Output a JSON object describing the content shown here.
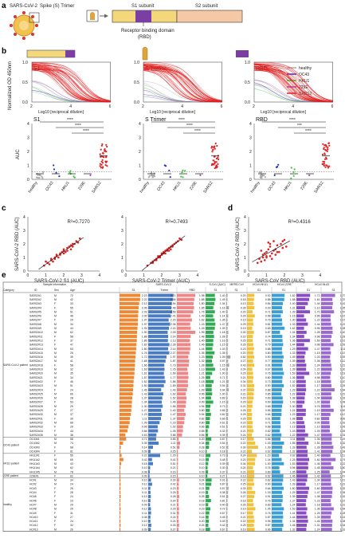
{
  "panel_letters": [
    "a",
    "b",
    "c",
    "d",
    "e"
  ],
  "panel_a": {
    "virus_label": "SARS-CoV-2",
    "spike_label": "Spike (S) Trimer",
    "s1_label": "S1 subunit",
    "s2_label": "S2 subunit",
    "rbd_label": "Receptor binding domain",
    "rbd_abbr": "(RBD)",
    "colors": {
      "s1": "#f3d77a",
      "s2": "#f6c9a6",
      "rbd": "#7b3fa3",
      "virus": "#f2c14e",
      "spike": "#d9352a"
    }
  },
  "legend": [
    {
      "name": "healthy",
      "color": "#aaaaaa"
    },
    {
      "name": "OC43",
      "color": "#2233cc"
    },
    {
      "name": "HKU1",
      "color": "#33cc33"
    },
    {
      "name": "229E",
      "color": "#aa44cc"
    },
    {
      "name": "SARS2",
      "color": "#e02020"
    }
  ],
  "panel_b": {
    "ylabel_top": "Normalized OD 450nm",
    "xlabel_top": "Log10 [reciprocal dilution]",
    "ylabel_bottom": "AUC",
    "sig": "****",
    "sig2": "***",
    "cats": [
      "healthy",
      "OC43",
      "HKU1",
      "229E",
      "SARS2"
    ],
    "curves": [
      {
        "title": "S1",
        "x": [
          2,
          3,
          4,
          5,
          6
        ],
        "xticks": [
          "2",
          "4",
          "6"
        ],
        "yticks": [
          "0.0",
          "0.5",
          "1.0"
        ]
      },
      {
        "title": "S Trimer",
        "x": [
          2,
          3,
          4,
          5,
          6
        ],
        "xticks": [
          "2",
          "4",
          "6"
        ],
        "yticks": [
          "0.0",
          "0.5",
          "1.0"
        ]
      },
      {
        "title": "RBD",
        "x": [
          2,
          3,
          4,
          5,
          6
        ],
        "xticks": [
          "2",
          "4",
          "6"
        ],
        "yticks": [
          "0.0",
          "0.5",
          "1.0"
        ]
      }
    ],
    "auc": [
      {
        "title": "S1",
        "yticks": [
          "0",
          "1",
          "2",
          "3",
          "4"
        ],
        "ylim": [
          0,
          4
        ]
      },
      {
        "title": "S Trimer",
        "yticks": [
          "0",
          "1",
          "2",
          "3",
          "4"
        ],
        "ylim": [
          0,
          4
        ]
      },
      {
        "title": "RBD",
        "yticks": [
          "0",
          "1",
          "2",
          "3",
          "4"
        ],
        "ylim": [
          0,
          4
        ]
      }
    ]
  },
  "chart_data": [
    {
      "type": "scatter",
      "title": "",
      "xlabel": "SARS-CoV-2 S1 (AUC)",
      "ylabel": "SARS-CoV-2 RBD (AUC)",
      "annotation": "R²=0.7270",
      "xlim": [
        0,
        4
      ],
      "ylim": [
        0,
        4
      ],
      "x": [
        0.9,
        1.1,
        1.2,
        1.3,
        1.4,
        1.5,
        1.5,
        1.6,
        1.7,
        1.8,
        1.8,
        1.9,
        2.0,
        2.0,
        2.1,
        2.2,
        2.2,
        2.3,
        2.4,
        2.5,
        2.6,
        2.7,
        2.8,
        2.9,
        1.0,
        1.6,
        2.0,
        2.4,
        2.5,
        1.3
      ],
      "y": [
        0.4,
        0.6,
        0.5,
        0.8,
        0.7,
        0.9,
        1.0,
        1.1,
        1.0,
        1.3,
        1.2,
        1.4,
        1.5,
        1.6,
        1.4,
        1.7,
        1.5,
        1.8,
        1.9,
        2.0,
        2.0,
        2.2,
        2.1,
        2.4,
        0.7,
        1.2,
        1.3,
        1.6,
        1.8,
        0.9
      ]
    },
    {
      "type": "scatter",
      "title": "",
      "xlabel": "SARS-CoV-2 Trimer (AUC)",
      "ylabel": "",
      "annotation": "R²=0.7493",
      "xlim": [
        0,
        4
      ],
      "ylim": [
        0,
        4
      ],
      "x": [
        1.2,
        1.4,
        1.5,
        1.6,
        1.7,
        1.8,
        1.8,
        1.9,
        2.0,
        2.0,
        2.1,
        2.2,
        2.2,
        2.3,
        2.3,
        2.4,
        2.5,
        2.5,
        2.6,
        2.7,
        2.8,
        2.9,
        3.0,
        3.1,
        1.5,
        1.9,
        2.1,
        2.4,
        2.6,
        1.7
      ],
      "y": [
        0.4,
        0.6,
        0.7,
        0.8,
        0.8,
        1.0,
        1.1,
        1.1,
        1.3,
        1.2,
        1.4,
        1.5,
        1.3,
        1.6,
        1.5,
        1.7,
        1.8,
        1.6,
        1.9,
        2.0,
        2.1,
        2.2,
        2.4,
        2.3,
        0.6,
        1.0,
        1.3,
        1.5,
        1.8,
        0.9
      ]
    },
    {
      "type": "scatter",
      "title": "",
      "xlabel": "SARS-CoV RBD (AUC)",
      "ylabel": "SARS-CoV-2 RBD (AUC)",
      "annotation": "R²=0.4316",
      "xlim": [
        0,
        4
      ],
      "ylim": [
        0,
        4
      ],
      "x": [
        0.5,
        0.6,
        0.7,
        0.8,
        0.9,
        1.0,
        1.0,
        1.1,
        1.2,
        1.2,
        1.3,
        1.4,
        1.4,
        1.5,
        1.6,
        1.7,
        1.8,
        1.9,
        2.0,
        2.1,
        0.7,
        0.9,
        1.1,
        1.3,
        1.5,
        1.0,
        1.2,
        0.8,
        1.6,
        1.9
      ],
      "y": [
        0.6,
        0.9,
        0.7,
        1.2,
        0.8,
        1.4,
        1.0,
        1.6,
        1.1,
        1.8,
        1.3,
        1.5,
        2.2,
        1.2,
        1.9,
        1.4,
        2.0,
        1.7,
        2.3,
        1.8,
        1.5,
        1.3,
        2.1,
        0.9,
        1.6,
        1.1,
        2.0,
        1.0,
        1.4,
        2.2
      ]
    }
  ],
  "panel_cd_ticks": [
    "0",
    "1",
    "2",
    "3",
    "4"
  ],
  "panel_e": {
    "sample_info": "Sample information",
    "group_header": "Category",
    "col_headers": [
      "ID",
      "Sex",
      "Age"
    ],
    "assay_groups": [
      "SARS-CoV-2",
      "S-CoV (AUC)",
      "MERS-CoV",
      "HCoV-HKU1",
      "HCoV-229E",
      "HCoV-NL63"
    ],
    "assay_sub": [
      "S1",
      "Trimer",
      "RBD",
      "S1",
      "S1",
      "S1",
      "S1",
      "S1",
      "S1"
    ],
    "categories": [
      {
        "label": "SARS-CoV-2 patient",
        "rows": 35
      },
      {
        "label": "OC43 patient",
        "rows": 4
      },
      {
        "label": "HKU1 patient",
        "rows": 5
      },
      {
        "label": "229E patient",
        "rows": 1
      },
      {
        "label": "healthy",
        "rows": 13
      }
    ],
    "col_colors": [
      "#ee8833",
      "#4a7cc4",
      "#ee8888",
      "#33aa55",
      "#aaaaaa",
      "#f2c23a",
      "#3a9fd4",
      "#8a4ec4",
      "#9a6ad0"
    ],
    "rows": [
      [
        "SARS2#1",
        "M",
        "72"
      ],
      [
        "SARS2#2",
        "M",
        "42"
      ],
      [
        "SARS2#3",
        "F",
        "33"
      ],
      [
        "SARS2#4",
        "F",
        "55"
      ],
      [
        "SARS2#5",
        "M",
        "51"
      ],
      [
        "SARS2#6",
        "M",
        "48"
      ],
      [
        "SARS2#7",
        "F",
        "29"
      ],
      [
        "SARS2#8",
        "M",
        "34"
      ],
      [
        "SARS2#9",
        "M",
        "44"
      ],
      [
        "SARS2#10",
        "M",
        "62"
      ],
      [
        "SARS2#11",
        "F",
        "58"
      ],
      [
        "SARS2#12",
        "F",
        "37"
      ],
      [
        "SARS2#13",
        "F",
        "47"
      ],
      [
        "SARS2#14",
        "M",
        "63"
      ],
      [
        "SARS2#15",
        "M",
        "25"
      ],
      [
        "SARS2#16",
        "M",
        "39"
      ],
      [
        "SARS2#17",
        "M",
        "41"
      ],
      [
        "SARS2#18",
        "F",
        "58"
      ],
      [
        "SARS2#19",
        "M",
        "32"
      ],
      [
        "SARS2#20",
        "M",
        "35"
      ],
      [
        "SARS2#21",
        "M",
        "34"
      ],
      [
        "SARS2#22",
        "F",
        "46"
      ],
      [
        "SARS2#23",
        "M",
        "51"
      ],
      [
        "SARS2#24",
        "F",
        "24"
      ],
      [
        "SARS2#25",
        "M",
        "66"
      ],
      [
        "SARS2#26",
        "M",
        "28"
      ],
      [
        "SARS2#27",
        "F",
        "53"
      ],
      [
        "SARS2#28",
        "M",
        "29"
      ],
      [
        "SARS2#29",
        "F",
        "27"
      ],
      [
        "SARS2#30",
        "M",
        "37"
      ],
      [
        "SARS2#31",
        "F",
        "39"
      ],
      [
        "SARS2#32",
        "M",
        "68"
      ],
      [
        "SARS2#33",
        "F",
        "29"
      ],
      [
        "SARS2#34",
        "F",
        "43"
      ],
      [
        "SARS2#35",
        "M",
        "38"
      ],
      [
        "OC43#1",
        "M",
        "58"
      ],
      [
        "OC43#2",
        "M",
        "74"
      ],
      [
        "OC43#3",
        "F",
        "68"
      ],
      [
        "OC43#4",
        "F",
        "61"
      ],
      [
        "HKU1#1",
        "F",
        "56"
      ],
      [
        "HKU1#2",
        "M",
        "65"
      ],
      [
        "HKU1#3",
        "M",
        "43"
      ],
      [
        "HKU1#4",
        "M",
        "62"
      ],
      [
        "HKU1#5",
        "M",
        "78"
      ],
      [
        "229E#1",
        "F",
        "62"
      ],
      [
        "HC#1",
        "M",
        "34"
      ],
      [
        "HC#2",
        "M",
        "24"
      ],
      [
        "HC#3",
        "F",
        "26"
      ],
      [
        "HC#4",
        "F",
        "28"
      ],
      [
        "HC#5",
        "F",
        "24"
      ],
      [
        "HC#6",
        "F",
        "23"
      ],
      [
        "HC#7",
        "M",
        "29"
      ],
      [
        "HC#8",
        "M",
        "25"
      ],
      [
        "HC#9",
        "F",
        "31"
      ],
      [
        "HC#10",
        "M",
        "27"
      ],
      [
        "HC#11",
        "F",
        "24"
      ],
      [
        "HC#12",
        "F",
        "32"
      ],
      [
        "HC#13",
        "M",
        "26"
      ]
    ],
    "values": [
      [
        2.23,
        2.71,
        1.98,
        1.4,
        0.2,
        0.92,
        1.62,
        1.72,
        1.7
      ],
      [
        2.22,
        2.65,
        1.88,
        1.49,
        0.18,
        0.88,
        1.58,
        1.61,
        1.37
      ],
      [
        2.12,
        2.54,
        1.8,
        1.34,
        0.13,
        0.84,
        1.4,
        1.44,
        1.42
      ],
      [
        2.06,
        2.48,
        1.85,
        1.16,
        0.39,
        0.93,
        1.31,
        1.1,
        1.35
      ],
      [
        2.03,
        2.58,
        1.76,
        1.4,
        0.2,
        0.71,
        1.39,
        1.7,
        1.57
      ],
      [
        2.0,
        2.41,
        1.49,
        1.14,
        0.29,
        0.98,
        1.15,
        0.96,
        1.15
      ],
      [
        1.97,
        2.2,
        1.62,
        1.35,
        0.19,
        0.76,
        1.3,
        1.22,
        1.15
      ],
      [
        1.97,
        2.36,
        1.43,
        1.47,
        0.29,
        0.81,
        1.33,
        1.44,
        1.22
      ],
      [
        1.93,
        2.24,
        1.49,
        1.39,
        0.19,
        0.65,
        1.62,
        0.96,
        1.38
      ],
      [
        1.9,
        2.09,
        1.99,
        1.18,
        0.3,
        0.87,
        1.04,
        1.28,
        1.4
      ],
      [
        1.88,
        2.14,
        1.48,
        1.28,
        0.22,
        0.74,
        1.34,
        0.98,
        1.28
      ],
      [
        1.86,
        2.13,
        1.4,
        1.16,
        0.25,
        0.71,
        1.36,
        1.69,
        1.16
      ],
      [
        1.82,
        2.28,
        1.46,
        1.15,
        0.26,
        0.79,
        1.44,
        0.98,
        1.51
      ],
      [
        1.8,
        2.14,
        1.44,
        1.03,
        0.23,
        0.88,
        1.29,
        1.47,
        1.11
      ],
      [
        1.76,
        2.27,
        1.35,
        1.35,
        0.2,
        0.8,
        1.33,
        1.15,
        1.19
      ],
      [
        1.72,
        1.97,
        1.23,
        1.09,
        0.62,
        0.9,
        1.49,
        1.03,
        1.09
      ],
      [
        1.68,
        1.87,
        1.32,
        0.97,
        0.27,
        0.77,
        1.39,
        1.08,
        1.12
      ],
      [
        1.66,
        1.73,
        1.28,
        1.15,
        0.43,
        0.91,
        1.33,
        1.24,
        1.23
      ],
      [
        1.63,
        1.76,
        1.13,
        1.43,
        0.24,
        0.67,
        1.39,
        1.22,
        1.3
      ],
      [
        1.61,
        1.69,
        1.21,
        1.0,
        0.23,
        0.76,
        1.53,
        1.62,
        1.18
      ],
      [
        1.57,
        1.77,
        1.25,
        0.71,
        0.21,
        0.8,
        1.36,
        0.98,
        1.1
      ],
      [
        1.52,
        1.86,
        1.18,
        1.21,
        0.34,
        0.73,
        1.32,
        1.18,
        1.2
      ],
      [
        1.5,
        1.69,
        1.21,
        0.94,
        0.31,
        0.9,
        1.52,
        1.17,
        1.26
      ],
      [
        1.46,
        1.4,
        1.09,
        0.94,
        0.37,
        0.88,
        1.29,
        1.22,
        1.64
      ],
      [
        1.43,
        1.62,
        0.96,
        1.0,
        0.21,
        0.85,
        1.22,
        1.11,
        1.23
      ],
      [
        1.37,
        1.52,
        1.04,
        0.83,
        0.2,
        0.83,
        1.38,
        1.04,
        1.31
      ],
      [
        1.34,
        1.46,
        0.99,
        1.15,
        0.29,
        0.69,
        1.43,
        1.02,
        1.08
      ],
      [
        1.3,
        1.56,
        0.94,
        0.73,
        0.21,
        0.68,
        1.3,
        0.76,
        1.11
      ],
      [
        1.27,
        1.4,
        0.8,
        0.65,
        0.26,
        0.56,
        1.24,
        1.19,
        1.53
      ],
      [
        1.23,
        1.47,
        0.94,
        0.82,
        0.29,
        0.64,
        1.23,
        1.17,
        1.13
      ],
      [
        1.11,
        1.37,
        0.82,
        0.66,
        0.25,
        0.61,
        1.08,
        0.82,
        0.99
      ],
      [
        1.09,
        1.23,
        0.8,
        0.61,
        0.23,
        0.71,
        1.09,
        0.99,
        1.02
      ],
      [
        0.96,
        1.02,
        0.66,
        0.51,
        0.2,
        0.68,
        1.13,
        1.1,
        1.06
      ],
      [
        0.86,
        1.05,
        0.65,
        0.32,
        0.21,
        0.82,
        1.03,
        1.09,
        1.05
      ],
      [
        0.63,
        0.88,
        0.56,
        0.35,
        0.24,
        0.62,
        1.22,
        1.47,
        1.31
      ],
      [
        0.71,
        0.85,
        0.2,
        0.87,
        0.17,
        0.86,
        1.11,
        1.06,
        1.29
      ],
      [
        0.39,
        1.11,
        0.34,
        0.54,
        0.22,
        1.03,
        1.55,
        1.51,
        1.32
      ],
      [
        0.14,
        0.51,
        0.28,
        0.52,
        0.3,
        1.39,
        1.33,
        1.28,
        1.49
      ],
      [
        0.09,
        0.25,
        0.1,
        0.18,
        0.22,
        0.62,
        1.32,
        1.41,
        1.38
      ],
      [
        0.22,
        1.29,
        0.12,
        0.73,
        0.24,
        1.23,
        0.92,
        1.4,
        1.13
      ],
      [
        0.42,
        0.41,
        0.13,
        0.48,
        0.2,
        1.04,
        1.25,
        1.6,
        1.76
      ],
      [
        0.18,
        0.51,
        0.12,
        0.39,
        0.34,
        1.0,
        1.53,
        1.46,
        1.22
      ],
      [
        0.1,
        0.21,
        0.1,
        0.3,
        0.24,
        0.76,
        0.96,
        1.48,
        1.5
      ],
      [
        0.08,
        0.16,
        0.09,
        0.37,
        0.21,
        0.89,
        1.05,
        1.25,
        1.04
      ],
      [
        0.09,
        0.15,
        0.1,
        0.27,
        0.13,
        0.92,
        1.46,
        1.42,
        1.19
      ],
      [
        0.1,
        0.3,
        0.24,
        0.91,
        0.22,
        0.82,
        1.43,
        1.34,
        1.19
      ],
      [
        0.12,
        0.42,
        0.21,
        0.87,
        0.25,
        0.9,
        1.33,
        1.17,
        1.22
      ],
      [
        0.11,
        0.23,
        0.21,
        0.57,
        0.33,
        0.64,
        1.5,
        1.6,
        1.39
      ],
      [
        0.11,
        0.25,
        0.19,
        0.38,
        0.26,
        1.03,
        1.29,
        1.47,
        1.36
      ],
      [
        0.13,
        0.28,
        0.25,
        0.51,
        0.27,
        0.91,
        1.39,
        1.38,
        1.32
      ],
      [
        0.1,
        0.24,
        0.18,
        0.81,
        0.18,
        0.76,
        1.37,
        1.23,
        1.15
      ],
      [
        0.09,
        0.21,
        0.19,
        0.4,
        0.26,
        0.83,
        1.24,
        1.18,
        1.23
      ],
      [
        0.12,
        0.29,
        0.23,
        0.72,
        0.19,
        1.05,
        1.53,
        1.36,
        1.54
      ],
      [
        0.11,
        0.31,
        0.22,
        0.57,
        0.17,
        0.76,
        1.41,
        1.25,
        1.28
      ],
      [
        0.08,
        0.24,
        0.16,
        0.45,
        0.21,
        0.87,
        1.44,
        1.39,
        1.16
      ],
      [
        0.1,
        0.24,
        0.2,
        0.49,
        0.22,
        0.95,
        1.34,
        1.46,
        1.38
      ],
      [
        0.12,
        0.33,
        0.24,
        0.42,
        0.25,
        0.87,
        1.46,
        1.31,
        1.34
      ],
      [
        0.09,
        0.27,
        0.18,
        0.67,
        0.19,
        0.96,
        1.32,
        1.24,
        1.33
      ]
    ]
  }
}
